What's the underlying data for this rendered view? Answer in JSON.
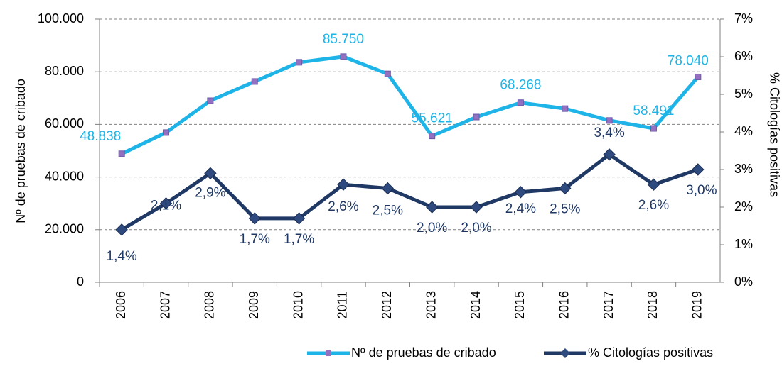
{
  "chart_data": {
    "type": "line",
    "categories": [
      "2006",
      "2007",
      "2008",
      "2009",
      "2010",
      "2011",
      "2012",
      "2013",
      "2014",
      "2015",
      "2016",
      "2017",
      "2018",
      "2019"
    ],
    "y_axis_label": "Nº de pruebas de cribado",
    "y2_axis_label": "% Citologías positivas",
    "ylim": [
      0,
      100000
    ],
    "yticks": [
      0,
      {
        "value": 20000,
        "label": "20.000"
      },
      {
        "value": 40000,
        "label": "40.000"
      },
      {
        "value": 60000,
        "label": "60.000"
      },
      {
        "value": 80000,
        "label": "80.000"
      },
      {
        "value": 100000,
        "label": "100.000"
      }
    ],
    "y2lim": [
      0,
      7
    ],
    "y2ticks": [
      {
        "value": 0,
        "label": "0%"
      },
      {
        "value": 1,
        "label": "1%"
      },
      {
        "value": 2,
        "label": "2%"
      },
      {
        "value": 3,
        "label": "3%"
      },
      {
        "value": 4,
        "label": "4%"
      },
      {
        "value": 5,
        "label": "5%"
      },
      {
        "value": 6,
        "label": "6%"
      },
      {
        "value": 7,
        "label": "7%"
      }
    ],
    "grid": true,
    "legend": "bottom",
    "series": [
      {
        "name": "Nº de pruebas de cribado",
        "color": "#1eb4e8",
        "marker_color": "#9370c0",
        "values": [
          48838,
          56900,
          69000,
          76300,
          83600,
          85750,
          79200,
          55621,
          62800,
          68268,
          66000,
          61500,
          58491,
          78040
        ],
        "value_labels": [
          "48.838",
          null,
          null,
          null,
          null,
          "85.750",
          null,
          "55.621",
          null,
          "68.268",
          null,
          null,
          "58.491",
          "78.040"
        ]
      },
      {
        "name": "% Citologías positivas",
        "color": "#1f3864",
        "marker_color": "#2e4a7f",
        "axis": "y2",
        "values": [
          1.4,
          2.1,
          2.9,
          1.7,
          1.7,
          2.6,
          2.5,
          2.0,
          2.0,
          2.4,
          2.5,
          3.4,
          2.6,
          3.0
        ],
        "value_labels": [
          "1,4%",
          "2,1%",
          "2,9%",
          "1,7%",
          "1,7%",
          "2,6%",
          "2,5%",
          "2,0%",
          "2,0%",
          "2,4%",
          "2,5%",
          "3,4%",
          "2,6%",
          "3,0%"
        ]
      }
    ]
  }
}
